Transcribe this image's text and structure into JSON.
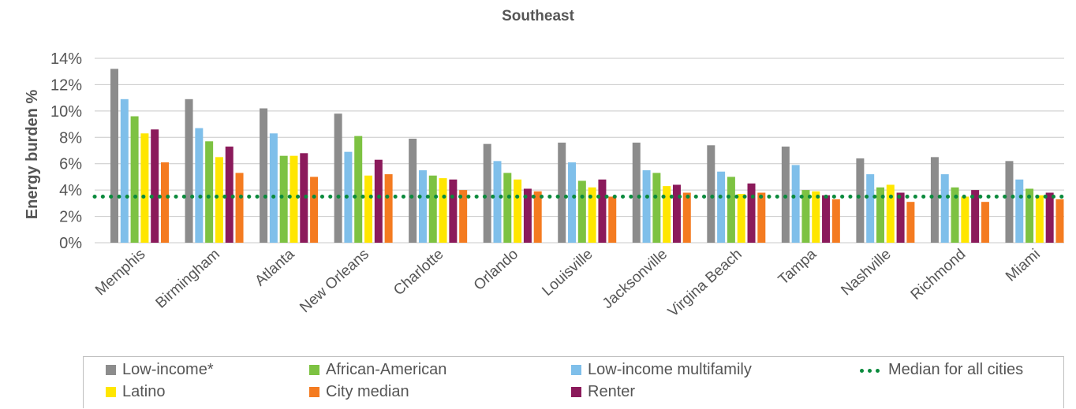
{
  "chart_data": {
    "type": "bar",
    "title": "Southeast",
    "ylabel": "Energy burden %",
    "xlabel": "",
    "ylim": [
      0,
      14
    ],
    "yticks": [
      "0%",
      "2%",
      "4%",
      "6%",
      "8%",
      "10%",
      "12%",
      "14%"
    ],
    "grid": true,
    "categories": [
      "Memphis",
      "Birmingham",
      "Atlanta",
      "New Orleans",
      "Charlotte",
      "Orlando",
      "Louisville",
      "Jacksonville",
      "Virgina Beach",
      "Tampa",
      "Nashville",
      "Richmond",
      "Miami"
    ],
    "series": [
      {
        "name": "Low-income*",
        "color": "#8c8c8c",
        "values": [
          13.2,
          10.9,
          10.2,
          9.8,
          7.9,
          7.5,
          7.6,
          7.6,
          7.4,
          7.3,
          6.4,
          6.5,
          6.2
        ]
      },
      {
        "name": "Low-income multifamily",
        "color": "#7fbfea",
        "values": [
          10.9,
          8.7,
          8.3,
          6.9,
          5.5,
          6.2,
          6.1,
          5.5,
          5.4,
          5.9,
          5.2,
          5.2,
          4.8
        ]
      },
      {
        "name": "African-American",
        "color": "#7dc242",
        "values": [
          9.6,
          7.7,
          6.6,
          8.1,
          5.1,
          5.3,
          4.7,
          5.3,
          5.0,
          4.0,
          4.2,
          4.2,
          4.1
        ]
      },
      {
        "name": "Latino",
        "color": "#ffe600",
        "values": [
          8.3,
          6.5,
          6.6,
          5.1,
          4.9,
          4.8,
          4.2,
          4.3,
          3.7,
          3.9,
          4.4,
          3.5,
          3.6
        ]
      },
      {
        "name": "Renter",
        "color": "#8b1a5b",
        "values": [
          8.6,
          7.3,
          6.8,
          6.3,
          4.8,
          4.1,
          4.8,
          4.4,
          4.5,
          3.6,
          3.8,
          4.0,
          3.8
        ]
      },
      {
        "name": "City median",
        "color": "#f47b20",
        "values": [
          6.1,
          5.3,
          5.0,
          5.2,
          4.0,
          3.9,
          3.5,
          3.8,
          3.8,
          3.3,
          3.1,
          3.1,
          3.3
        ]
      }
    ],
    "median_line": {
      "name": "Median for all cities",
      "value": 3.5,
      "color": "#0a8a3c"
    },
    "legend": {
      "placement": "bottom",
      "items": [
        {
          "label": "Low-income*",
          "color": "#8c8c8c",
          "kind": "bar"
        },
        {
          "label": "African-American",
          "color": "#7dc242",
          "kind": "bar"
        },
        {
          "label": "Low-income multifamily",
          "color": "#7fbfea",
          "kind": "bar"
        },
        {
          "label": "Median for all cities",
          "color": "#0a8a3c",
          "kind": "dots"
        },
        {
          "label": "Latino",
          "color": "#ffe600",
          "kind": "bar"
        },
        {
          "label": "City median",
          "color": "#f47b20",
          "kind": "bar"
        },
        {
          "label": "Renter",
          "color": "#8b1a5b",
          "kind": "bar"
        }
      ]
    }
  }
}
